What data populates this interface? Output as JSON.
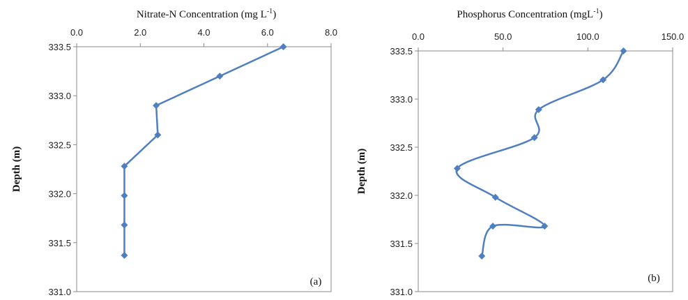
{
  "chart_data": [
    {
      "type": "line",
      "title": "Nitrate-N  Concentration (mg L",
      "title_sup": "-1",
      "title_close": ")",
      "ylabel": "Depth (m)",
      "panel_label": "(a)",
      "xlim": [
        0,
        8
      ],
      "ylim": [
        331.0,
        333.5
      ],
      "x_ticks": [
        "0.0",
        "2.0",
        "4.0",
        "6.0",
        "8.0"
      ],
      "y_ticks": [
        "333.5",
        "333.0",
        "332.5",
        "332.0",
        "331.5",
        "331.0"
      ],
      "x": [
        6.5,
        4.5,
        2.5,
        2.55,
        1.5,
        1.5,
        1.5,
        1.5
      ],
      "y": [
        333.5,
        333.2,
        332.9,
        332.6,
        332.28,
        331.98,
        331.68,
        331.37
      ],
      "smooth": false
    },
    {
      "type": "line",
      "title": "Phosphorus Concentration (mgL",
      "title_sup": "-1",
      "title_close": ")",
      "ylabel": "Depth (m)",
      "panel_label": "(b)",
      "xlim": [
        0,
        150
      ],
      "ylim": [
        331.0,
        333.5
      ],
      "x_ticks": [
        "0.0",
        "50.0",
        "100.0",
        "150.0"
      ],
      "y_ticks": [
        "333.5",
        "333.0",
        "332.5",
        "332.0",
        "331.5",
        "331.0"
      ],
      "x": [
        121,
        109,
        71,
        68.5,
        23,
        45.5,
        74.5,
        44,
        37.5
      ],
      "y": [
        333.5,
        333.2,
        332.89,
        332.6,
        332.28,
        331.98,
        331.68,
        331.68,
        331.37
      ],
      "smooth": true
    }
  ]
}
